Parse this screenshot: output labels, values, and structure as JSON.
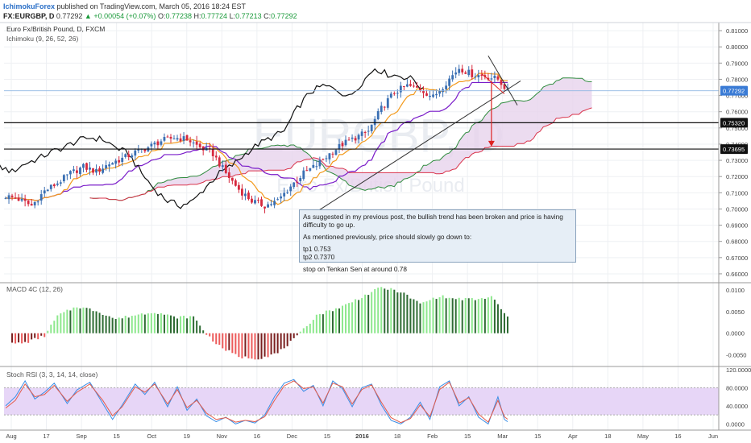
{
  "header": {
    "author": "IchimokuForex",
    "published_text": "published on TradingView.com, March 05, 2016 18:24 EST",
    "symbol": "FX:EURGBP, D",
    "last": "0.77292",
    "change": "+0.00054 (+0.07%)",
    "ohlc": {
      "o_label": "O:",
      "o": "0.77238",
      "h_label": "H:",
      "h": "0.77724",
      "l_label": "L:",
      "l": "0.77213",
      "c_label": "C:",
      "c": "0.77292"
    }
  },
  "chart_data": [
    {
      "type": "candlestick",
      "title": "Euro Fx/British Pound, D, FXCM",
      "indicator": "Ichimoku (9, 26, 52, 26)",
      "watermark_symbol": "EURGBP, D",
      "watermark_name": "Euro Fx/British Pound",
      "y_ticks": [
        "0.81000",
        "0.80000",
        "0.79000",
        "0.78000",
        "0.77000",
        "0.76000",
        "0.75000",
        "0.74000",
        "0.73000",
        "0.72000",
        "0.71000",
        "0.70000",
        "0.69000",
        "0.68000",
        "0.67000",
        "0.66000"
      ],
      "ylim": [
        0.655,
        0.815
      ],
      "x_ticks": [
        "Aug",
        "17",
        "Sep",
        "15",
        "Oct",
        "19",
        "Nov",
        "16",
        "Dec",
        "15",
        "2016",
        "18",
        "Feb",
        "15",
        "Mar",
        "15",
        "Apr",
        "18",
        "May",
        "16",
        "Jun"
      ],
      "price_labels": [
        {
          "value": 0.77292,
          "text": "0.77292"
        },
        {
          "value": 0.7532,
          "text": "0.75320"
        },
        {
          "value": 0.73695,
          "text": "0.73695"
        }
      ],
      "close_anchors": [
        [
          0,
          0.708
        ],
        [
          4,
          0.706
        ],
        [
          8,
          0.702
        ],
        [
          12,
          0.711
        ],
        [
          16,
          0.716
        ],
        [
          20,
          0.722
        ],
        [
          24,
          0.726
        ],
        [
          28,
          0.723
        ],
        [
          32,
          0.728
        ],
        [
          36,
          0.731
        ],
        [
          40,
          0.735
        ],
        [
          44,
          0.738
        ],
        [
          48,
          0.742
        ],
        [
          52,
          0.744
        ],
        [
          56,
          0.743
        ],
        [
          60,
          0.738
        ],
        [
          64,
          0.734
        ],
        [
          68,
          0.722
        ],
        [
          72,
          0.712
        ],
        [
          76,
          0.705
        ],
        [
          80,
          0.702
        ],
        [
          84,
          0.705
        ],
        [
          88,
          0.714
        ],
        [
          92,
          0.722
        ],
        [
          96,
          0.727
        ],
        [
          100,
          0.734
        ],
        [
          104,
          0.74
        ],
        [
          108,
          0.744
        ],
        [
          112,
          0.748
        ],
        [
          116,
          0.762
        ],
        [
          120,
          0.772
        ],
        [
          124,
          0.776
        ],
        [
          128,
          0.774
        ],
        [
          132,
          0.769
        ],
        [
          136,
          0.778
        ],
        [
          140,
          0.787
        ],
        [
          144,
          0.783
        ],
        [
          148,
          0.782
        ],
        [
          152,
          0.78
        ],
        [
          155,
          0.773
        ]
      ],
      "support_lines": [
        0.7532,
        0.73695
      ],
      "trendline": {
        "from": [
          95,
          0.697
        ],
        "to": [
          159,
          0.779
        ]
      },
      "annotation": {
        "line1": "As suggested in my previous post, the bullish trend has been broken and price is having difficulty to go up.",
        "line2": "As mentioned previously, price should slowly go down to:",
        "tp1": "tp1 0.753",
        "tp2": "tp2 0.7370",
        "stop": "stop on Tenkan Sen at around 0.78"
      }
    },
    {
      "type": "histogram",
      "title": "MACD 4C (12, 26)",
      "y_ticks": [
        "0.0100",
        "0.0050",
        "0.0000",
        "-0.0050"
      ],
      "ylim": [
        -0.0075,
        0.0115
      ],
      "anchors": [
        [
          0,
          -0.0026
        ],
        [
          6,
          -0.0022
        ],
        [
          12,
          -0.0006
        ],
        [
          16,
          0.004
        ],
        [
          22,
          0.0062
        ],
        [
          28,
          0.0052
        ],
        [
          34,
          0.0033
        ],
        [
          40,
          0.0042
        ],
        [
          46,
          0.005
        ],
        [
          52,
          0.0037
        ],
        [
          58,
          0.0038
        ],
        [
          62,
          -0.0002
        ],
        [
          66,
          -0.003
        ],
        [
          72,
          -0.0055
        ],
        [
          78,
          -0.0058
        ],
        [
          84,
          -0.0046
        ],
        [
          90,
          -0.0008
        ],
        [
          96,
          0.0042
        ],
        [
          104,
          0.0062
        ],
        [
          110,
          0.0084
        ],
        [
          116,
          0.0106
        ],
        [
          122,
          0.0096
        ],
        [
          128,
          0.0068
        ],
        [
          134,
          0.0086
        ],
        [
          138,
          0.008
        ],
        [
          146,
          0.0078
        ],
        [
          150,
          0.0085
        ],
        [
          155,
          0.0037
        ]
      ]
    },
    {
      "type": "line",
      "title": "Stoch RSI (3, 3, 14, 14, close)",
      "y_ticks": [
        "120.0000",
        "80.0000",
        "40.0000",
        "0.0000"
      ],
      "ylim": [
        -10,
        125
      ],
      "band": [
        20,
        80
      ],
      "series": [
        {
          "color": "#3a8ee6",
          "anchors": [
            [
              0,
              40
            ],
            [
              3,
              60
            ],
            [
              6,
              95
            ],
            [
              9,
              55
            ],
            [
              12,
              70
            ],
            [
              15,
              90
            ],
            [
              19,
              45
            ],
            [
              22,
              75
            ],
            [
              26,
              92
            ],
            [
              30,
              45
            ],
            [
              33,
              10
            ],
            [
              36,
              42
            ],
            [
              40,
              88
            ],
            [
              43,
              65
            ],
            [
              46,
              92
            ],
            [
              50,
              38
            ],
            [
              53,
              82
            ],
            [
              56,
              30
            ],
            [
              59,
              55
            ],
            [
              62,
              18
            ],
            [
              65,
              5
            ],
            [
              68,
              15
            ],
            [
              71,
              0
            ],
            [
              74,
              8
            ],
            [
              77,
              2
            ],
            [
              80,
              20
            ],
            [
              83,
              60
            ],
            [
              86,
              90
            ],
            [
              89,
              98
            ],
            [
              92,
              72
            ],
            [
              95,
              85
            ],
            [
              98,
              40
            ],
            [
              101,
              95
            ],
            [
              104,
              78
            ],
            [
              107,
              38
            ],
            [
              110,
              80
            ],
            [
              113,
              88
            ],
            [
              116,
              42
            ],
            [
              119,
              8
            ],
            [
              122,
              0
            ],
            [
              125,
              15
            ],
            [
              128,
              48
            ],
            [
              131,
              10
            ],
            [
              134,
              82
            ],
            [
              137,
              95
            ],
            [
              140,
              40
            ],
            [
              143,
              60
            ],
            [
              146,
              15
            ],
            [
              149,
              0
            ],
            [
              152,
              60
            ],
            [
              154,
              10
            ],
            [
              156,
              0
            ]
          ]
        },
        {
          "color": "#e35a4a",
          "anchors": [
            [
              0,
              35
            ],
            [
              3,
              52
            ],
            [
              6,
              88
            ],
            [
              9,
              60
            ],
            [
              12,
              65
            ],
            [
              15,
              85
            ],
            [
              19,
              50
            ],
            [
              22,
              70
            ],
            [
              26,
              88
            ],
            [
              30,
              52
            ],
            [
              33,
              18
            ],
            [
              36,
              38
            ],
            [
              40,
              82
            ],
            [
              43,
              70
            ],
            [
              46,
              88
            ],
            [
              50,
              44
            ],
            [
              53,
              76
            ],
            [
              56,
              36
            ],
            [
              59,
              52
            ],
            [
              62,
              24
            ],
            [
              65,
              10
            ],
            [
              68,
              14
            ],
            [
              71,
              4
            ],
            [
              74,
              8
            ],
            [
              77,
              5
            ],
            [
              80,
              16
            ],
            [
              83,
              52
            ],
            [
              86,
              84
            ],
            [
              89,
              95
            ],
            [
              92,
              78
            ],
            [
              95,
              82
            ],
            [
              98,
              46
            ],
            [
              101,
              90
            ],
            [
              104,
              82
            ],
            [
              107,
              44
            ],
            [
              110,
              76
            ],
            [
              113,
              86
            ],
            [
              116,
              48
            ],
            [
              119,
              14
            ],
            [
              122,
              3
            ],
            [
              125,
              12
            ],
            [
              128,
              42
            ],
            [
              131,
              16
            ],
            [
              134,
              76
            ],
            [
              137,
              92
            ],
            [
              140,
              46
            ],
            [
              143,
              58
            ],
            [
              146,
              22
            ],
            [
              149,
              4
            ],
            [
              152,
              52
            ],
            [
              154,
              16
            ],
            [
              156,
              5
            ]
          ]
        }
      ]
    }
  ]
}
